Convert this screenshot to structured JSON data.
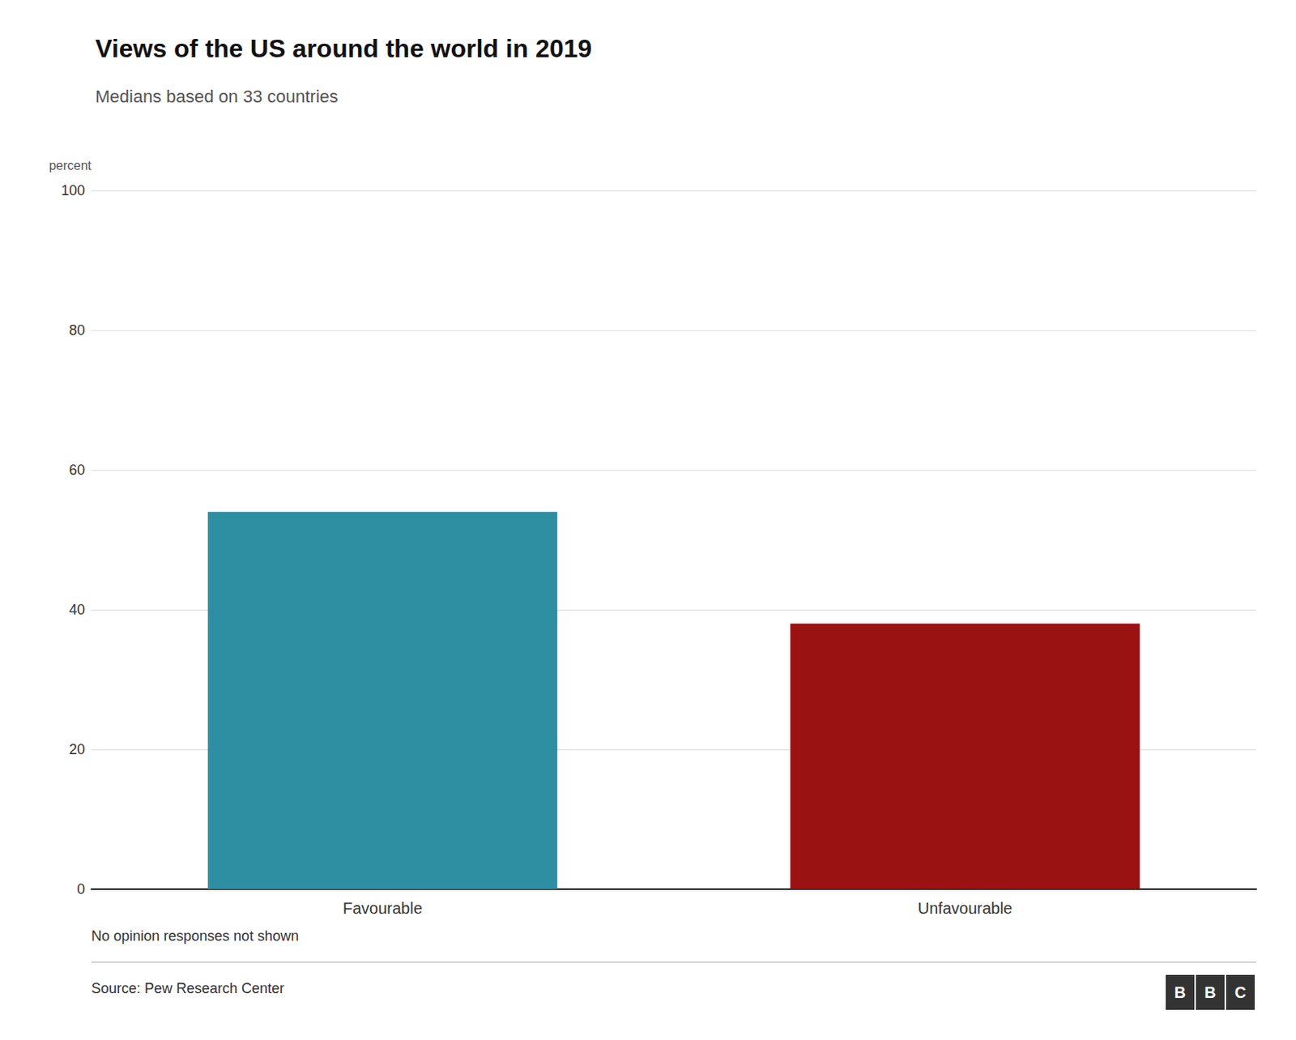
{
  "chart_data": {
    "type": "bar",
    "title": "Views of the US around the world in 2019",
    "subtitle": "Medians based on 33 countries",
    "categories": [
      "Favourable",
      "Unfavourable"
    ],
    "values": [
      54,
      38
    ],
    "colors": [
      "#2e8fa3",
      "#9b1212"
    ],
    "ylabel": "percent",
    "ylim": [
      0,
      100
    ],
    "yticks": [
      0,
      20,
      40,
      60,
      80,
      100
    ],
    "grid": true,
    "footnote": "No opinion responses not shown",
    "source": "Source: Pew Research Center",
    "logo": "BBC"
  }
}
